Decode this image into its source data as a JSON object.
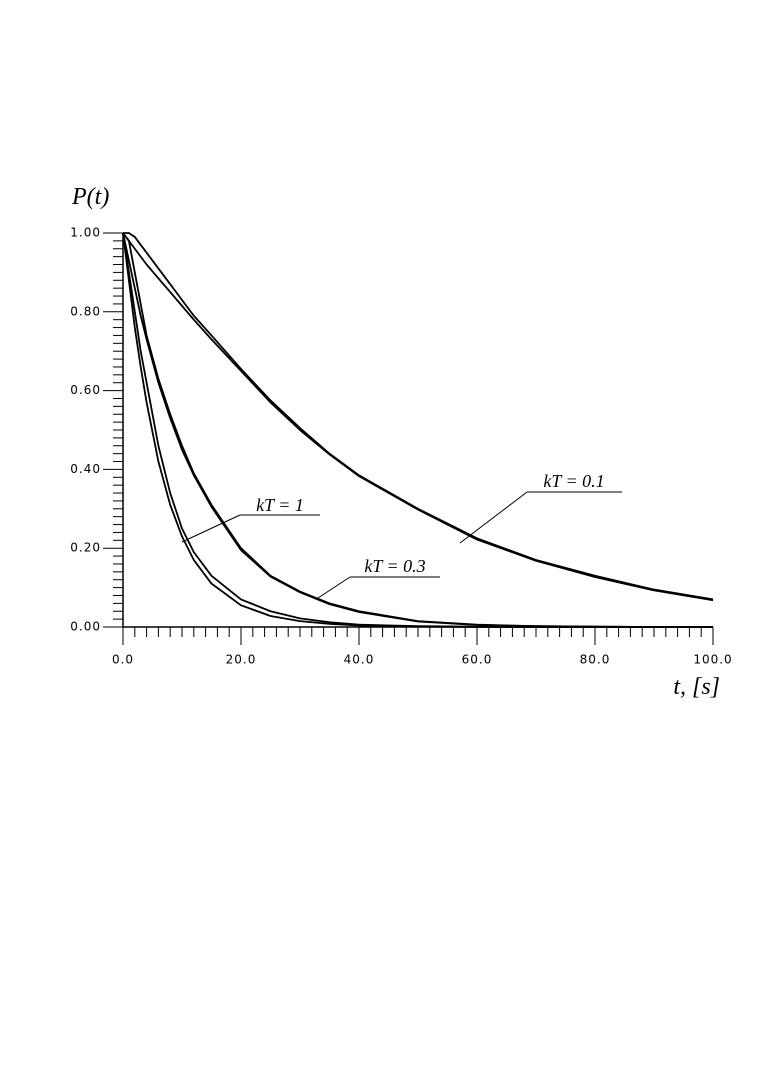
{
  "chart_data": {
    "type": "line",
    "title": "P(t)",
    "x_label": "t, [s]",
    "color": "#000000",
    "xlim": [
      0,
      100
    ],
    "ylim": [
      0,
      1
    ],
    "xticks": [
      {
        "value": 0,
        "label": "0.0"
      },
      {
        "value": 20,
        "label": "20.0"
      },
      {
        "value": 40,
        "label": "40.0"
      },
      {
        "value": 60,
        "label": "60.0"
      },
      {
        "value": 80,
        "label": "80.0"
      },
      {
        "value": 100,
        "label": "100.0"
      }
    ],
    "yticks": [
      {
        "value": 0,
        "label": "0.00"
      },
      {
        "value": 0.2,
        "label": "0.20"
      },
      {
        "value": 0.4,
        "label": "0.40"
      },
      {
        "value": 0.6,
        "label": "0.60"
      },
      {
        "value": 0.8,
        "label": "0.80"
      },
      {
        "value": 1,
        "label": "1.00"
      }
    ],
    "xminorticks": [
      2,
      4,
      6,
      8,
      10,
      12,
      14,
      16,
      18,
      22,
      24,
      26,
      28,
      30,
      32,
      34,
      36,
      38,
      42,
      44,
      46,
      48,
      50,
      52,
      54,
      56,
      58,
      62,
      64,
      66,
      68,
      70,
      72,
      74,
      76,
      78,
      82,
      84,
      86,
      88,
      90,
      92,
      94,
      96,
      98
    ],
    "yminorticks": [
      0.02,
      0.04,
      0.06,
      0.08,
      0.1,
      0.12,
      0.14,
      0.16,
      0.18,
      0.22,
      0.24,
      0.26,
      0.28,
      0.3,
      0.32,
      0.34,
      0.36,
      0.38,
      0.42,
      0.44,
      0.46,
      0.48,
      0.5,
      0.52,
      0.54,
      0.56,
      0.58,
      0.62,
      0.64,
      0.66,
      0.68,
      0.7,
      0.72,
      0.74,
      0.76,
      0.78,
      0.82,
      0.84,
      0.86,
      0.88,
      0.9,
      0.92,
      0.94,
      0.96,
      0.98
    ],
    "x": [
      0,
      1,
      2,
      3,
      4,
      6,
      8,
      10,
      12,
      15,
      20,
      25,
      30,
      35,
      40,
      50,
      60,
      70,
      80,
      90,
      100
    ],
    "groups": [
      {
        "label": "kT = 0.1",
        "curves": [
          {
            "values": [
              1,
              1,
              0.99,
              0.97,
              0.95,
              0.91,
              0.87,
              0.83,
              0.79,
              0.74,
              0.655,
              0.575,
              0.505,
              0.44,
              0.385,
              0.3,
              0.225,
              0.17,
              0.13,
              0.095,
              0.07
            ]
          },
          {
            "values": [
              1,
              0.98,
              0.96,
              0.94,
              0.92,
              0.885,
              0.85,
              0.815,
              0.78,
              0.73,
              0.65,
              0.57,
              0.5,
              0.438,
              0.383,
              0.298,
              0.222,
              0.168,
              0.127,
              0.093,
              0.068
            ]
          }
        ]
      },
      {
        "label": "kT = 0.3",
        "curves": [
          {
            "values": [
              1,
              0.98,
              0.9,
              0.82,
              0.74,
              0.63,
              0.54,
              0.46,
              0.39,
              0.31,
              0.2,
              0.13,
              0.09,
              0.06,
              0.04,
              0.015,
              0.006,
              0.002,
              0.001,
              0,
              0
            ]
          },
          {
            "values": [
              1,
              0.93,
              0.86,
              0.79,
              0.73,
              0.62,
              0.53,
              0.45,
              0.385,
              0.305,
              0.195,
              0.128,
              0.088,
              0.058,
              0.038,
              0.014,
              0.005,
              0.002,
              0.001,
              0,
              0
            ]
          }
        ]
      },
      {
        "label": "kT = 1",
        "curves": [
          {
            "values": [
              1,
              0.88,
              0.76,
              0.66,
              0.57,
              0.42,
              0.31,
              0.23,
              0.17,
              0.11,
              0.055,
              0.028,
              0.015,
              0.008,
              0.004,
              0.001,
              0,
              0,
              0,
              0,
              0
            ]
          },
          {
            "values": [
              1,
              0.9,
              0.8,
              0.7,
              0.62,
              0.46,
              0.34,
              0.25,
              0.19,
              0.13,
              0.07,
              0.04,
              0.022,
              0.012,
              0.006,
              0.002,
              0.001,
              0,
              0,
              0,
              0
            ]
          }
        ]
      }
    ]
  }
}
